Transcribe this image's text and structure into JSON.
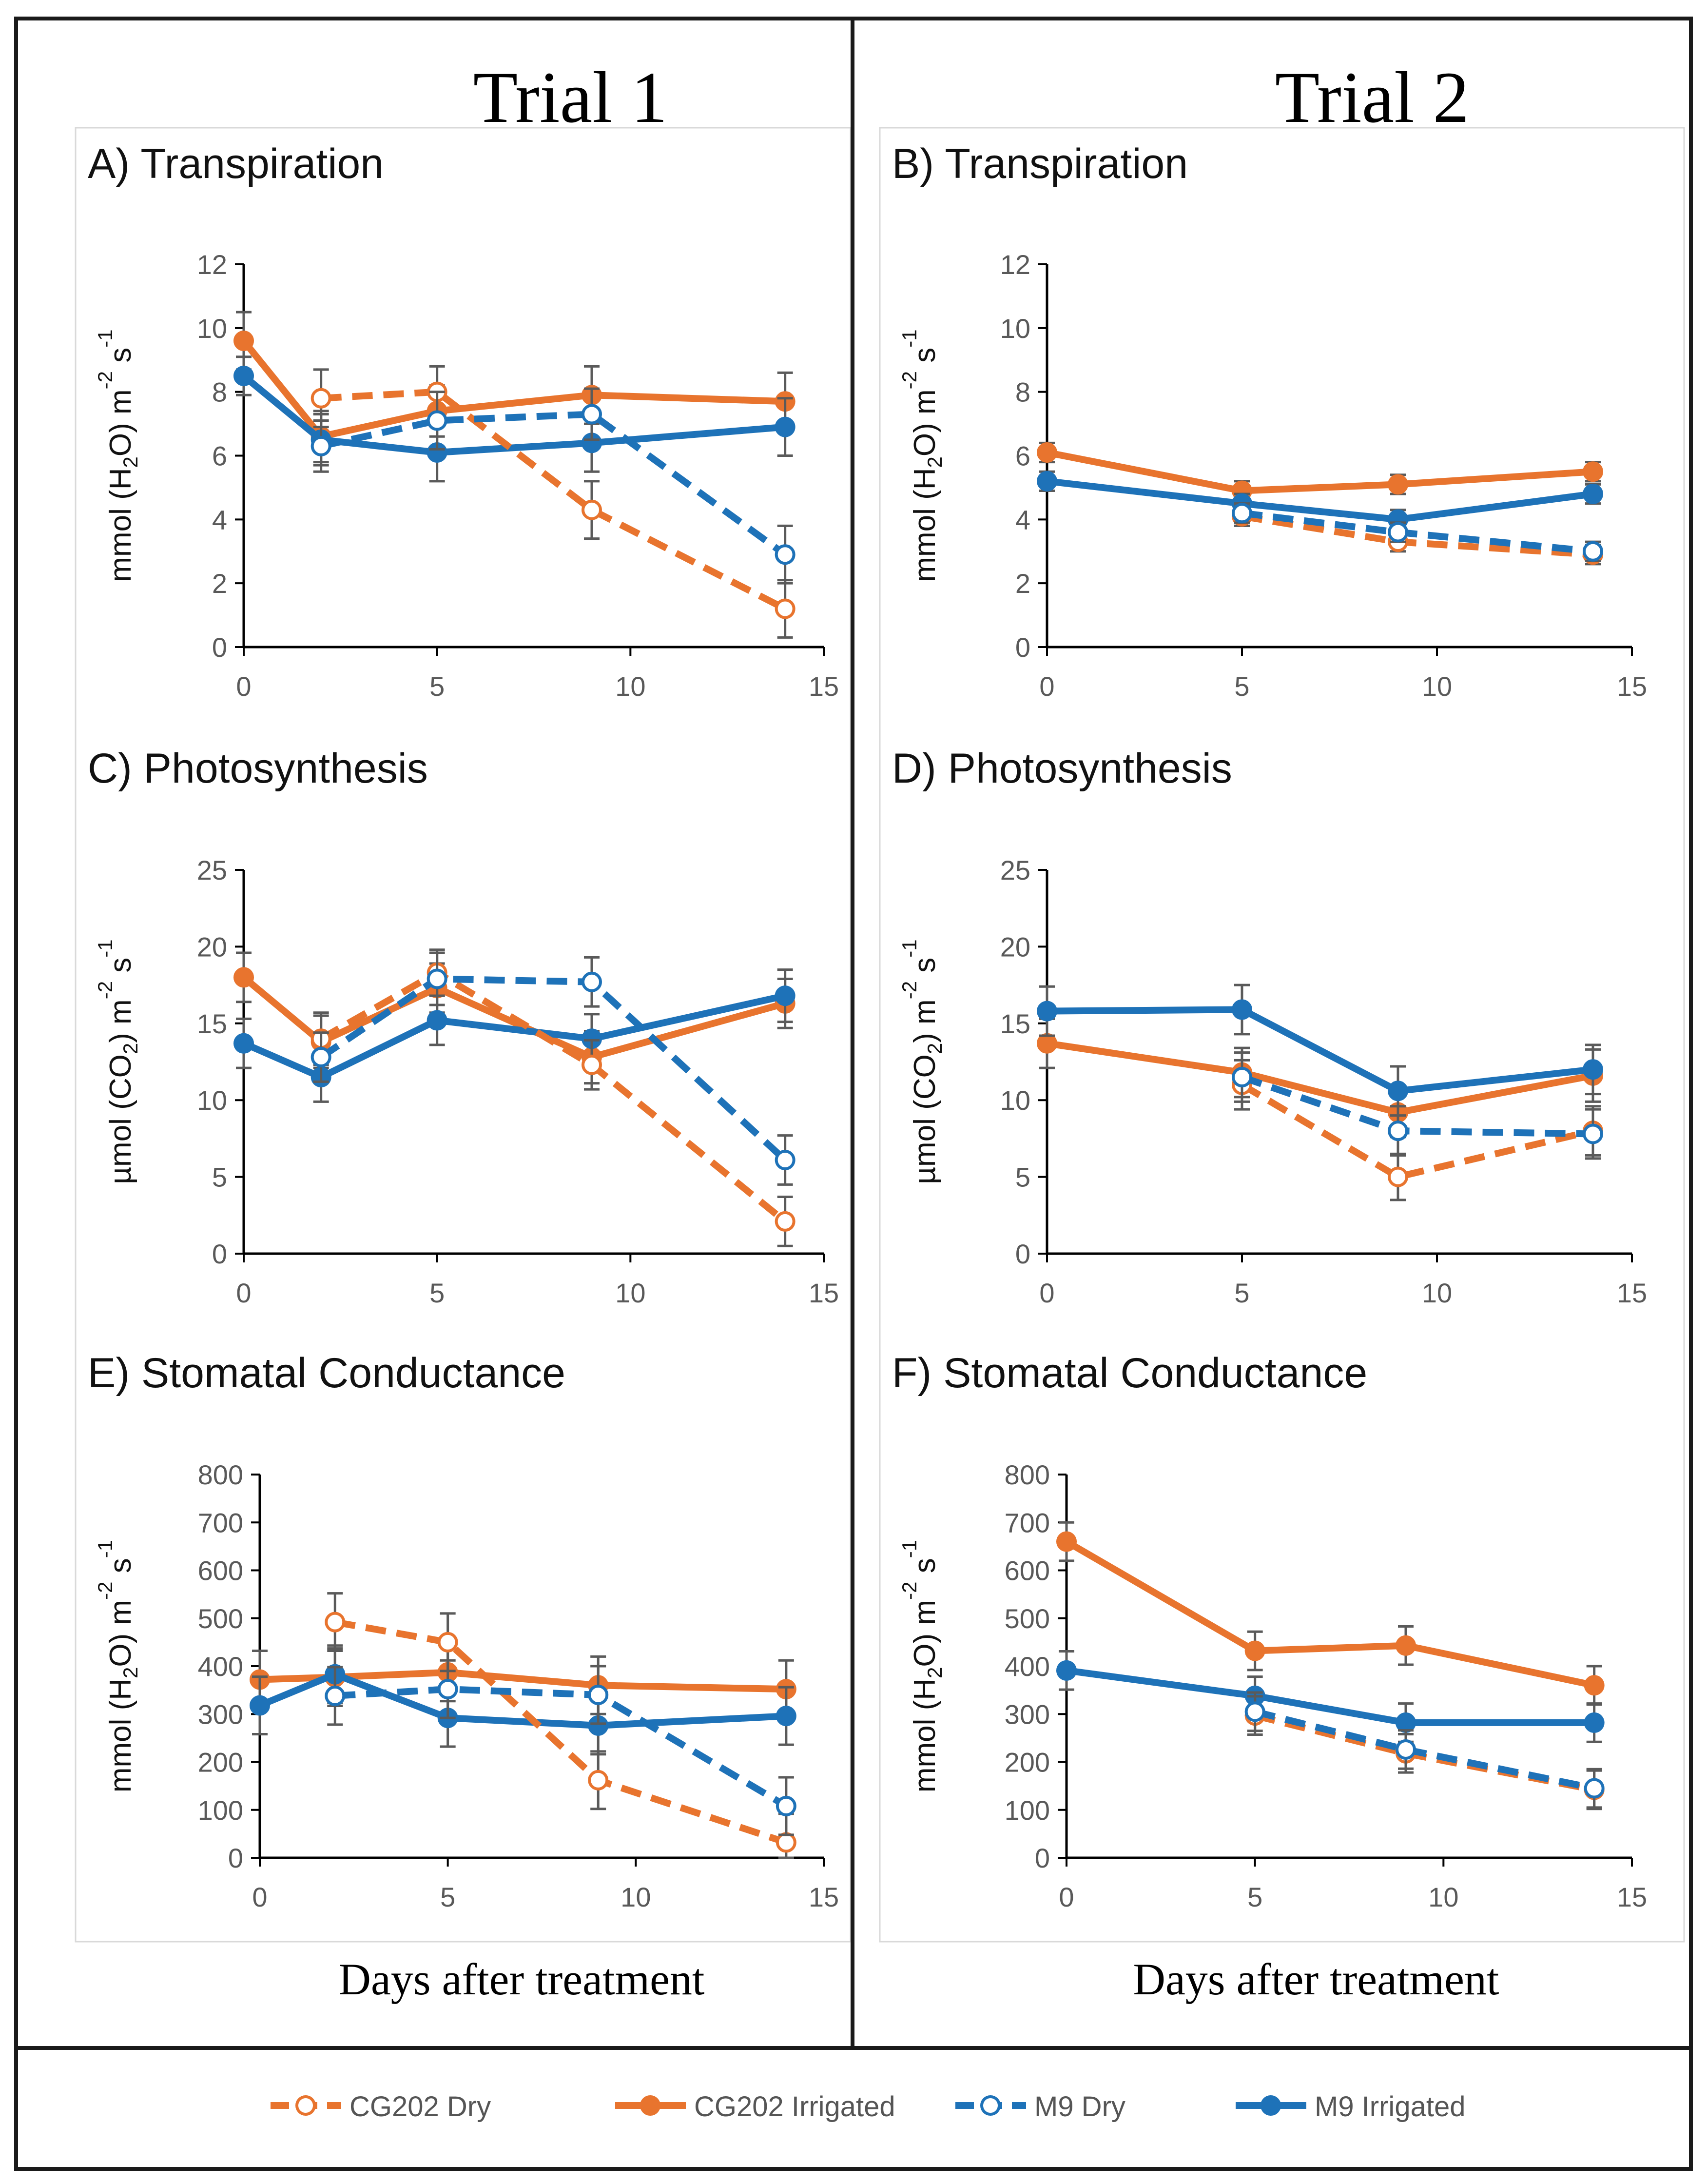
{
  "colors": {
    "cg202": "#E8742E",
    "m9": "#1E72B8",
    "errorbar": "#5A5A5A",
    "axis": "#000000",
    "tick_label": "#595959",
    "border": "#1A1A1A"
  },
  "trials": [
    {
      "label": "Trial 1",
      "xlabel": "Days after treatment"
    },
    {
      "label": "Trial 2",
      "xlabel": "Days after treatment"
    }
  ],
  "legend": {
    "entries": [
      {
        "label": "CG202 Dry",
        "series_key": "cg202_dry",
        "color": "cg202",
        "dashed": true,
        "filled": false
      },
      {
        "label": "CG202 Irrigated",
        "series_key": "cg202_irr",
        "color": "cg202",
        "dashed": false,
        "filled": true
      },
      {
        "label": "M9 Dry",
        "series_key": "m9_dry",
        "color": "m9",
        "dashed": true,
        "filled": false
      },
      {
        "label": "M9 Irrigated",
        "series_key": "m9_irr",
        "color": "m9",
        "dashed": false,
        "filled": true
      }
    ]
  },
  "chart_data": [
    {
      "id": "A",
      "type": "line",
      "title": "A) Transpiration",
      "ylabel_parts": [
        "mmol (H",
        "2",
        "O) m",
        "-2",
        " s",
        "-1"
      ],
      "xlim": [
        0,
        15
      ],
      "xticks": [
        "0",
        "5",
        "10",
        "15"
      ],
      "ylim": [
        0,
        12
      ],
      "yticks": [
        "0",
        "2",
        "4",
        "6",
        "8",
        "10",
        "12"
      ],
      "series": [
        {
          "key": "cg202_dry",
          "name": "CG202 Dry",
          "x": [
            2,
            5,
            9,
            14
          ],
          "y": [
            7.8,
            8.0,
            4.3,
            1.2
          ],
          "err": [
            0.9,
            0.8,
            0.9,
            0.9
          ]
        },
        {
          "key": "cg202_irr",
          "name": "CG202 Irrigated",
          "x": [
            0,
            2,
            5,
            9,
            14
          ],
          "y": [
            9.6,
            6.6,
            7.4,
            7.9,
            7.7
          ],
          "err": [
            0.9,
            0.8,
            0.8,
            0.9,
            0.9
          ]
        },
        {
          "key": "m9_dry",
          "name": "M9 Dry",
          "x": [
            2,
            5,
            9,
            14
          ],
          "y": [
            6.3,
            7.1,
            7.3,
            2.9
          ],
          "err": [
            0.8,
            0.9,
            0.8,
            0.9
          ]
        },
        {
          "key": "m9_irr",
          "name": "M9 Irrigated",
          "x": [
            0,
            2,
            5,
            9,
            14
          ],
          "y": [
            8.5,
            6.5,
            6.1,
            6.4,
            6.9
          ],
          "err": [
            0.6,
            0.8,
            0.9,
            0.9,
            0.9
          ]
        }
      ]
    },
    {
      "id": "B",
      "type": "line",
      "title": "B) Transpiration",
      "ylabel_parts": [
        "mmol (H",
        "2",
        "O) m",
        "-2",
        " s",
        "-1"
      ],
      "xlim": [
        0,
        15
      ],
      "xticks": [
        "0",
        "5",
        "10",
        "15"
      ],
      "ylim": [
        0,
        12
      ],
      "yticks": [
        "0",
        "2",
        "4",
        "6",
        "8",
        "10",
        "12"
      ],
      "series": [
        {
          "key": "cg202_dry",
          "name": "CG202 Dry",
          "x": [
            5,
            9,
            14
          ],
          "y": [
            4.1,
            3.3,
            2.9
          ],
          "err": [
            0.3,
            0.3,
            0.3
          ]
        },
        {
          "key": "cg202_irr",
          "name": "CG202 Irrigated",
          "x": [
            0,
            5,
            9,
            14
          ],
          "y": [
            6.1,
            4.9,
            5.1,
            5.5
          ],
          "err": [
            0.3,
            0.3,
            0.3,
            0.3
          ]
        },
        {
          "key": "m9_dry",
          "name": "M9 Dry",
          "x": [
            5,
            9,
            14
          ],
          "y": [
            4.2,
            3.6,
            3.0
          ],
          "err": [
            0.3,
            0.3,
            0.3
          ]
        },
        {
          "key": "m9_irr",
          "name": "M9 Irrigated",
          "x": [
            0,
            5,
            9,
            14
          ],
          "y": [
            5.2,
            4.5,
            4.0,
            4.8
          ],
          "err": [
            0.3,
            0.3,
            0.3,
            0.3
          ]
        }
      ]
    },
    {
      "id": "C",
      "type": "line",
      "title": "C) Photosynthesis",
      "ylabel_parts": [
        "µmol (CO",
        "2",
        ") m",
        "-2",
        " s",
        "-1"
      ],
      "xlim": [
        0,
        15
      ],
      "xticks": [
        "0",
        "5",
        "10",
        "15"
      ],
      "ylim": [
        0,
        25
      ],
      "yticks": [
        "0",
        "5",
        "10",
        "15",
        "20",
        "25"
      ],
      "series": [
        {
          "key": "cg202_dry",
          "name": "CG202 Dry",
          "x": [
            2,
            5,
            9,
            14
          ],
          "y": [
            14.0,
            18.3,
            12.3,
            2.1
          ],
          "err": [
            1.7,
            1.5,
            1.6,
            1.6
          ]
        },
        {
          "key": "cg202_irr",
          "name": "CG202 Irrigated",
          "x": [
            0,
            2,
            5,
            9,
            14
          ],
          "y": [
            18.0,
            13.8,
            17.3,
            12.8,
            16.3
          ],
          "err": [
            1.6,
            1.7,
            1.6,
            1.7,
            1.6
          ]
        },
        {
          "key": "m9_dry",
          "name": "M9 Dry",
          "x": [
            2,
            5,
            9,
            14
          ],
          "y": [
            12.8,
            17.9,
            17.7,
            6.1
          ],
          "err": [
            1.6,
            1.7,
            1.6,
            1.6
          ]
        },
        {
          "key": "m9_irr",
          "name": "M9 Irrigated",
          "x": [
            0,
            2,
            5,
            9,
            14
          ],
          "y": [
            13.7,
            11.5,
            15.2,
            14.0,
            16.8
          ],
          "err": [
            1.6,
            1.6,
            1.6,
            1.6,
            1.7
          ]
        }
      ]
    },
    {
      "id": "D",
      "type": "line",
      "title": "D) Photosynthesis",
      "ylabel_parts": [
        "µmol (CO",
        "2",
        ") m",
        "-2",
        " s",
        "-1"
      ],
      "xlim": [
        0,
        15
      ],
      "xticks": [
        "0",
        "5",
        "10",
        "15"
      ],
      "ylim": [
        0,
        25
      ],
      "yticks": [
        "0",
        "5",
        "10",
        "15",
        "20",
        "25"
      ],
      "series": [
        {
          "key": "cg202_dry",
          "name": "CG202 Dry",
          "x": [
            5,
            9,
            14
          ],
          "y": [
            11.0,
            5.0,
            8.0
          ],
          "err": [
            1.6,
            1.5,
            1.6
          ]
        },
        {
          "key": "cg202_irr",
          "name": "CG202 Irrigated",
          "x": [
            0,
            5,
            9,
            14
          ],
          "y": [
            13.7,
            11.8,
            9.2,
            11.6
          ],
          "err": [
            1.6,
            1.6,
            1.6,
            1.7
          ]
        },
        {
          "key": "m9_dry",
          "name": "M9 Dry",
          "x": [
            5,
            9,
            14
          ],
          "y": [
            11.5,
            8.0,
            7.8
          ],
          "err": [
            1.6,
            1.6,
            1.6
          ]
        },
        {
          "key": "m9_irr",
          "name": "M9 Irrigated",
          "x": [
            0,
            5,
            9,
            14
          ],
          "y": [
            15.8,
            15.9,
            10.6,
            12.0
          ],
          "err": [
            1.6,
            1.6,
            1.6,
            1.6
          ]
        }
      ]
    },
    {
      "id": "E",
      "type": "line",
      "title": "E) Stomatal Conductance",
      "ylabel_parts": [
        "mmol (H",
        "2",
        "O) m",
        "-2",
        " s",
        "-1"
      ],
      "xlim": [
        0,
        15
      ],
      "xticks": [
        "0",
        "5",
        "10",
        "15"
      ],
      "ylim": [
        0,
        800
      ],
      "yticks": [
        "0",
        "100",
        "200",
        "300",
        "400",
        "500",
        "600",
        "700",
        "800"
      ],
      "series": [
        {
          "key": "cg202_dry",
          "name": "CG202 Dry",
          "x": [
            2,
            5,
            9,
            14
          ],
          "y": [
            492,
            450,
            162,
            32
          ],
          "err": [
            60,
            60,
            60,
            60
          ]
        },
        {
          "key": "cg202_irr",
          "name": "CG202 Irrigated",
          "x": [
            0,
            2,
            5,
            9,
            14
          ],
          "y": [
            372,
            377,
            387,
            360,
            352
          ],
          "err": [
            60,
            60,
            60,
            60,
            60
          ]
        },
        {
          "key": "m9_dry",
          "name": "M9 Dry",
          "x": [
            2,
            5,
            9,
            14
          ],
          "y": [
            338,
            352,
            340,
            108
          ],
          "err": [
            60,
            60,
            60,
            60
          ]
        },
        {
          "key": "m9_irr",
          "name": "M9 Irrigated",
          "x": [
            0,
            2,
            5,
            9,
            14
          ],
          "y": [
            318,
            383,
            292,
            276,
            296
          ],
          "err": [
            60,
            60,
            60,
            60,
            60
          ]
        }
      ]
    },
    {
      "id": "F",
      "type": "line",
      "title": "F) Stomatal Conductance",
      "ylabel_parts": [
        "mmol (H",
        "2",
        "O) m",
        "-2",
        " s",
        "-1"
      ],
      "xlim": [
        0,
        15
      ],
      "xticks": [
        "0",
        "5",
        "10",
        "15"
      ],
      "ylim": [
        0,
        800
      ],
      "yticks": [
        "0",
        "100",
        "200",
        "300",
        "400",
        "500",
        "600",
        "700",
        "800"
      ],
      "series": [
        {
          "key": "cg202_dry",
          "name": "CG202 Dry",
          "x": [
            5,
            9,
            14
          ],
          "y": [
            297,
            218,
            142
          ],
          "err": [
            40,
            40,
            40
          ]
        },
        {
          "key": "cg202_irr",
          "name": "CG202 Irrigated",
          "x": [
            0,
            5,
            9,
            14
          ],
          "y": [
            660,
            432,
            443,
            360
          ],
          "err": [
            40,
            40,
            40,
            40
          ]
        },
        {
          "key": "m9_dry",
          "name": "M9 Dry",
          "x": [
            5,
            9,
            14
          ],
          "y": [
            305,
            226,
            145
          ],
          "err": [
            40,
            40,
            40
          ]
        },
        {
          "key": "m9_irr",
          "name": "M9 Irrigated",
          "x": [
            0,
            5,
            9,
            14
          ],
          "y": [
            391,
            338,
            282,
            282
          ],
          "err": [
            40,
            40,
            40,
            40
          ]
        }
      ]
    }
  ]
}
